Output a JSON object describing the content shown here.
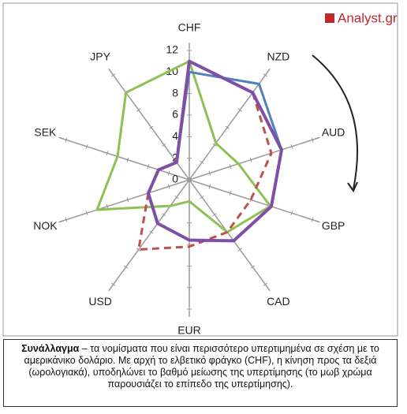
{
  "logo": "Analyst.gr",
  "caption": {
    "title": "Συνάλλαγμα",
    "text": " – τα νομίσματα που είναι περισσότερο υπερτιμημένα σε σχέση με το αμερικάνικο δολάριο. Με αρχή το ελβετικό φράγκο (CHF), η κίνηση προς τα δεξιά (ωρολογιακά), υποδηλώνει το βαθμό μείωσης της υπερτίμησης (το μωβ χρώμα παρουσιάζει το επίπεδο της υπερτίμησης)."
  },
  "chart_data": {
    "type": "radar",
    "categories": [
      "CHF",
      "NZD",
      "AUD",
      "GBP",
      "CAD",
      "EUR",
      "USD",
      "NOK",
      "SEK",
      "JPY"
    ],
    "ylim": [
      0,
      12
    ],
    "yticks": [
      0,
      2,
      4,
      6,
      8,
      10,
      12
    ],
    "series": [
      {
        "color": "#8dc153",
        "values": [
          11,
          4.2,
          4.8,
          7.9,
          6,
          2,
          3,
          9,
          7,
          10
        ]
      },
      {
        "color": "#4f81bd",
        "values": [
          10,
          11,
          9,
          8,
          7,
          5.6,
          5,
          4,
          3,
          2
        ]
      },
      {
        "color": "#c0504d",
        "dashed": true,
        "values": [
          11,
          10,
          8,
          6,
          6,
          6.2,
          8,
          4,
          3,
          2
        ]
      },
      {
        "color": "#7f4fa8",
        "values": [
          11,
          10,
          9,
          8,
          7,
          5.6,
          5,
          4,
          3,
          2
        ]
      }
    ]
  }
}
